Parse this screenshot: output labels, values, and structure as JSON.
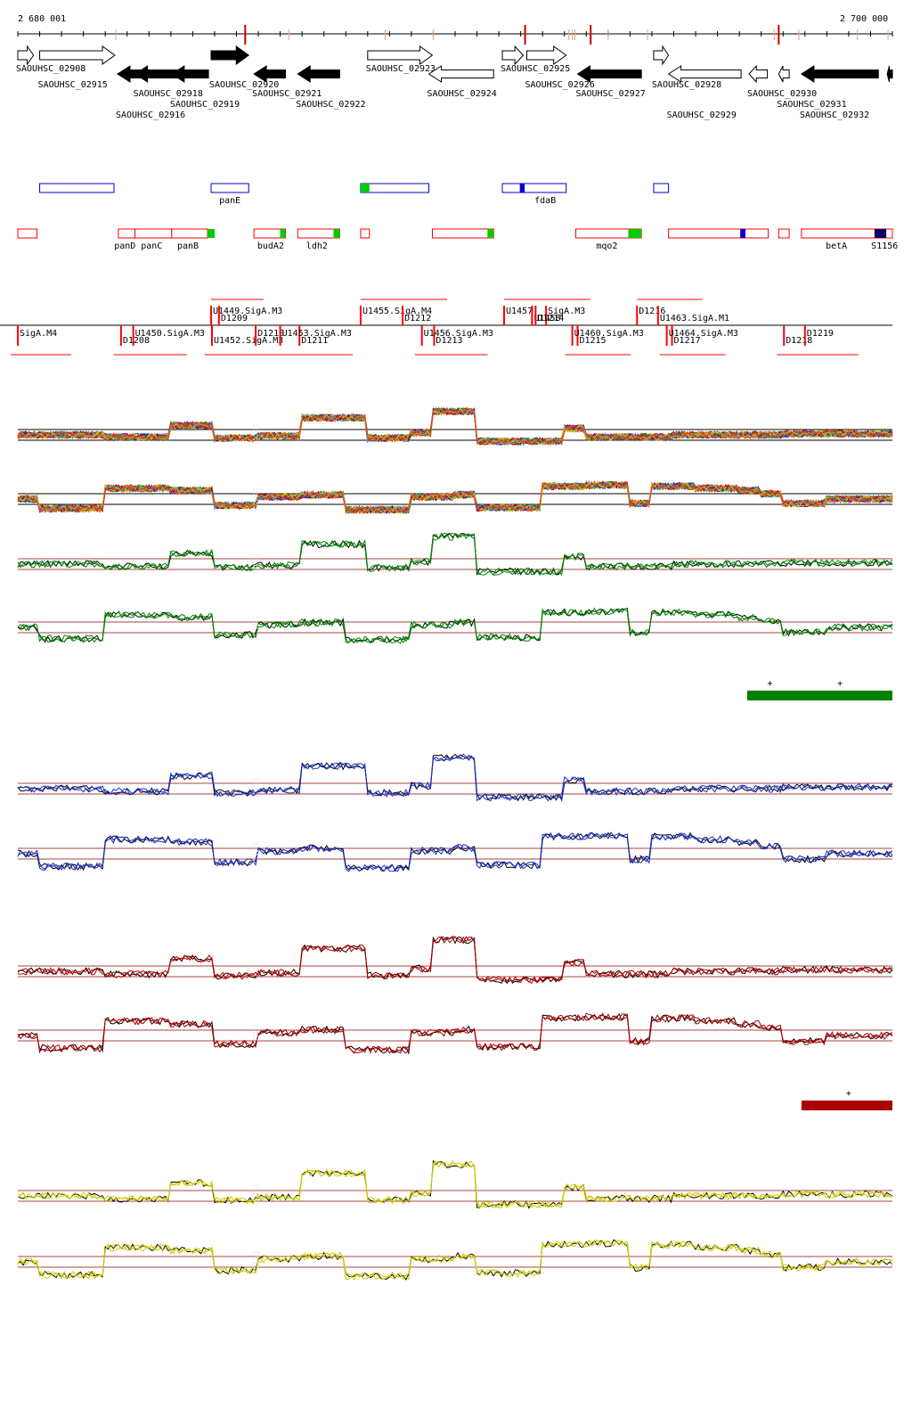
{
  "ruler": {
    "start_label": "2 680 001",
    "end_label": "2 700 000",
    "start": 2680001,
    "end": 2700000
  },
  "colors": {
    "axis": "#000000",
    "red": "#ff0000",
    "blue": "#0000cc",
    "green": "#00cc00",
    "navy": "#000066",
    "track_green": "#008000",
    "track_blue": "#1a2db5",
    "track_red": "#aa0000",
    "track_yellow": "#cccc00",
    "ref_line": "#aa4444"
  },
  "genes": [
    {
      "label": "SAOUHSC_02908",
      "start": 0.0,
      "end": 0.018,
      "strand": "+",
      "filled": false
    },
    {
      "label": "SAOUHSC_02915",
      "start": 0.025,
      "end": 0.111,
      "strand": "+",
      "filled": false
    },
    {
      "label": "SAOUHSC_02916",
      "start": 0.114,
      "end": 0.175,
      "strand": "-",
      "filled": true
    },
    {
      "label": "SAOUHSC_02918",
      "start": 0.134,
      "end": 0.215,
      "strand": "-",
      "filled": true
    },
    {
      "label": "SAOUHSC_02919",
      "start": 0.176,
      "end": 0.218,
      "strand": "-",
      "filled": true
    },
    {
      "label": "SAOUHSC_02920",
      "start": 0.221,
      "end": 0.264,
      "strand": "+",
      "filled": true
    },
    {
      "label": "SAOUHSC_02921",
      "start": 0.27,
      "end": 0.306,
      "strand": "-",
      "filled": true
    },
    {
      "label": "SAOUHSC_02922",
      "start": 0.32,
      "end": 0.368,
      "strand": "-",
      "filled": true
    },
    {
      "label": "SAOUHSC_02923",
      "start": 0.4,
      "end": 0.474,
      "strand": "+",
      "filled": false
    },
    {
      "label": "SAOUHSC_02924",
      "start": 0.47,
      "end": 0.544,
      "strand": "-",
      "filled": false
    },
    {
      "label": "SAOUHSC_02925",
      "start": 0.554,
      "end": 0.578,
      "strand": "+",
      "filled": false
    },
    {
      "label": "SAOUHSC_02926",
      "start": 0.582,
      "end": 0.627,
      "strand": "+",
      "filled": false
    },
    {
      "label": "SAOUHSC_02927",
      "start": 0.64,
      "end": 0.713,
      "strand": "-",
      "filled": true
    },
    {
      "label": "SAOUHSC_02928",
      "start": 0.727,
      "end": 0.744,
      "strand": "+",
      "filled": false
    },
    {
      "label": "SAOUHSC_02929",
      "start": 0.744,
      "end": 0.827,
      "strand": "-",
      "filled": false
    },
    {
      "label": "SAOUHSC_02930",
      "start": 0.836,
      "end": 0.857,
      "strand": "-",
      "filled": false
    },
    {
      "label": "SAOUHSC_02931",
      "start": 0.87,
      "end": 0.882,
      "strand": "-",
      "filled": false
    },
    {
      "label": "SAOUHSC_02932",
      "start": 0.896,
      "end": 0.984,
      "strand": "-",
      "filled": true
    },
    {
      "label": "",
      "start": 0.994,
      "end": 1.0,
      "strand": "-",
      "filled": true
    }
  ],
  "forward_features": [
    {
      "label": "",
      "start": 0.025,
      "end": 0.11,
      "color": "blue"
    },
    {
      "label": "panE",
      "start": 0.221,
      "end": 0.264,
      "color": "blue"
    },
    {
      "label": "",
      "start": 0.392,
      "end": 0.47,
      "color": "blue"
    },
    {
      "label": "",
      "start": 0.554,
      "end": 0.579,
      "color": "blue"
    },
    {
      "label": "fdaB",
      "start": 0.579,
      "end": 0.627,
      "color": "blue"
    },
    {
      "label": "",
      "start": 0.727,
      "end": 0.744,
      "color": "blue"
    }
  ],
  "reverse_features": [
    {
      "label": "",
      "start": 0.0,
      "end": 0.022,
      "color": "red"
    },
    {
      "label": "panD",
      "start": 0.115,
      "end": 0.134,
      "color": "red"
    },
    {
      "label": "panC",
      "start": 0.134,
      "end": 0.176,
      "color": "red"
    },
    {
      "label": "panB",
      "start": 0.176,
      "end": 0.217,
      "color": "red"
    },
    {
      "label": "budA2",
      "start": 0.27,
      "end": 0.306,
      "color": "red"
    },
    {
      "label": "ldh2",
      "start": 0.32,
      "end": 0.368,
      "color": "red"
    },
    {
      "label": "",
      "start": 0.392,
      "end": 0.402,
      "color": "red"
    },
    {
      "label": "",
      "start": 0.474,
      "end": 0.544,
      "color": "red"
    },
    {
      "label": "mqo2",
      "start": 0.638,
      "end": 0.713,
      "color": "red"
    },
    {
      "label": "",
      "start": 0.744,
      "end": 0.858,
      "color": "red"
    },
    {
      "label": "",
      "start": 0.87,
      "end": 0.882,
      "color": "red"
    },
    {
      "label": "betA",
      "start": 0.896,
      "end": 0.98,
      "color": "red"
    },
    {
      "label": "S1156",
      "start": 0.98,
      "end": 1.0,
      "color": "red"
    }
  ],
  "feature_labels_extra": [],
  "upper_segments": [
    {
      "label": "U1449.SigA.M3",
      "pos": 0.221
    },
    {
      "label": "D1209",
      "pos": 0.23
    },
    {
      "label": "U1455.SigA.M4",
      "pos": 0.392
    },
    {
      "label": "D1212",
      "pos": 0.44
    },
    {
      "label": "U1457",
      "pos": 0.556
    },
    {
      "label": "U1458",
      "pos": 0.588
    },
    {
      "label": "SigA.M3",
      "pos": 0.604
    },
    {
      "label": "D1214",
      "pos": 0.592
    },
    {
      "label": "D1216",
      "pos": 0.708
    },
    {
      "label": "U1463.SigA.M1",
      "pos": 0.732
    }
  ],
  "lower_segments": [
    {
      "label": "SigA.M4",
      "pos": 0.0
    },
    {
      "label": "D1208",
      "pos": 0.118
    },
    {
      "label": "U1450.SigA.M3",
      "pos": 0.132
    },
    {
      "label": "U1452.SigA.M3",
      "pos": 0.222
    },
    {
      "label": "D1210",
      "pos": 0.272
    },
    {
      "label": "D1211",
      "pos": 0.322
    },
    {
      "label": "U1453.SigA.M3",
      "pos": 0.3
    },
    {
      "label": "D1213",
      "pos": 0.476
    },
    {
      "label": "U1456.SigA.M3",
      "pos": 0.462
    },
    {
      "label": "D1215",
      "pos": 0.64
    },
    {
      "label": "U1460.SigA.M3",
      "pos": 0.634
    },
    {
      "label": "D1217",
      "pos": 0.748
    },
    {
      "label": "U1464.SigA.M3",
      "pos": 0.742
    },
    {
      "label": "D1218",
      "pos": 0.876
    },
    {
      "label": "D1219",
      "pos": 0.9
    }
  ],
  "tracks": [
    {
      "id": "multi",
      "multi": true,
      "series_count": 22
    },
    {
      "id": "green",
      "color": "track_green",
      "bar": {
        "start": 0.834,
        "end": 1.0,
        "plus_marks": [
          0.86,
          0.94
        ]
      }
    },
    {
      "id": "blue",
      "color": "track_blue"
    },
    {
      "id": "red",
      "color": "track_red",
      "bar": {
        "start": 0.896,
        "end": 1.0,
        "plus_marks": [
          0.95
        ]
      }
    },
    {
      "id": "yellow",
      "color": "track_yellow"
    }
  ],
  "bar_plus": "+"
}
